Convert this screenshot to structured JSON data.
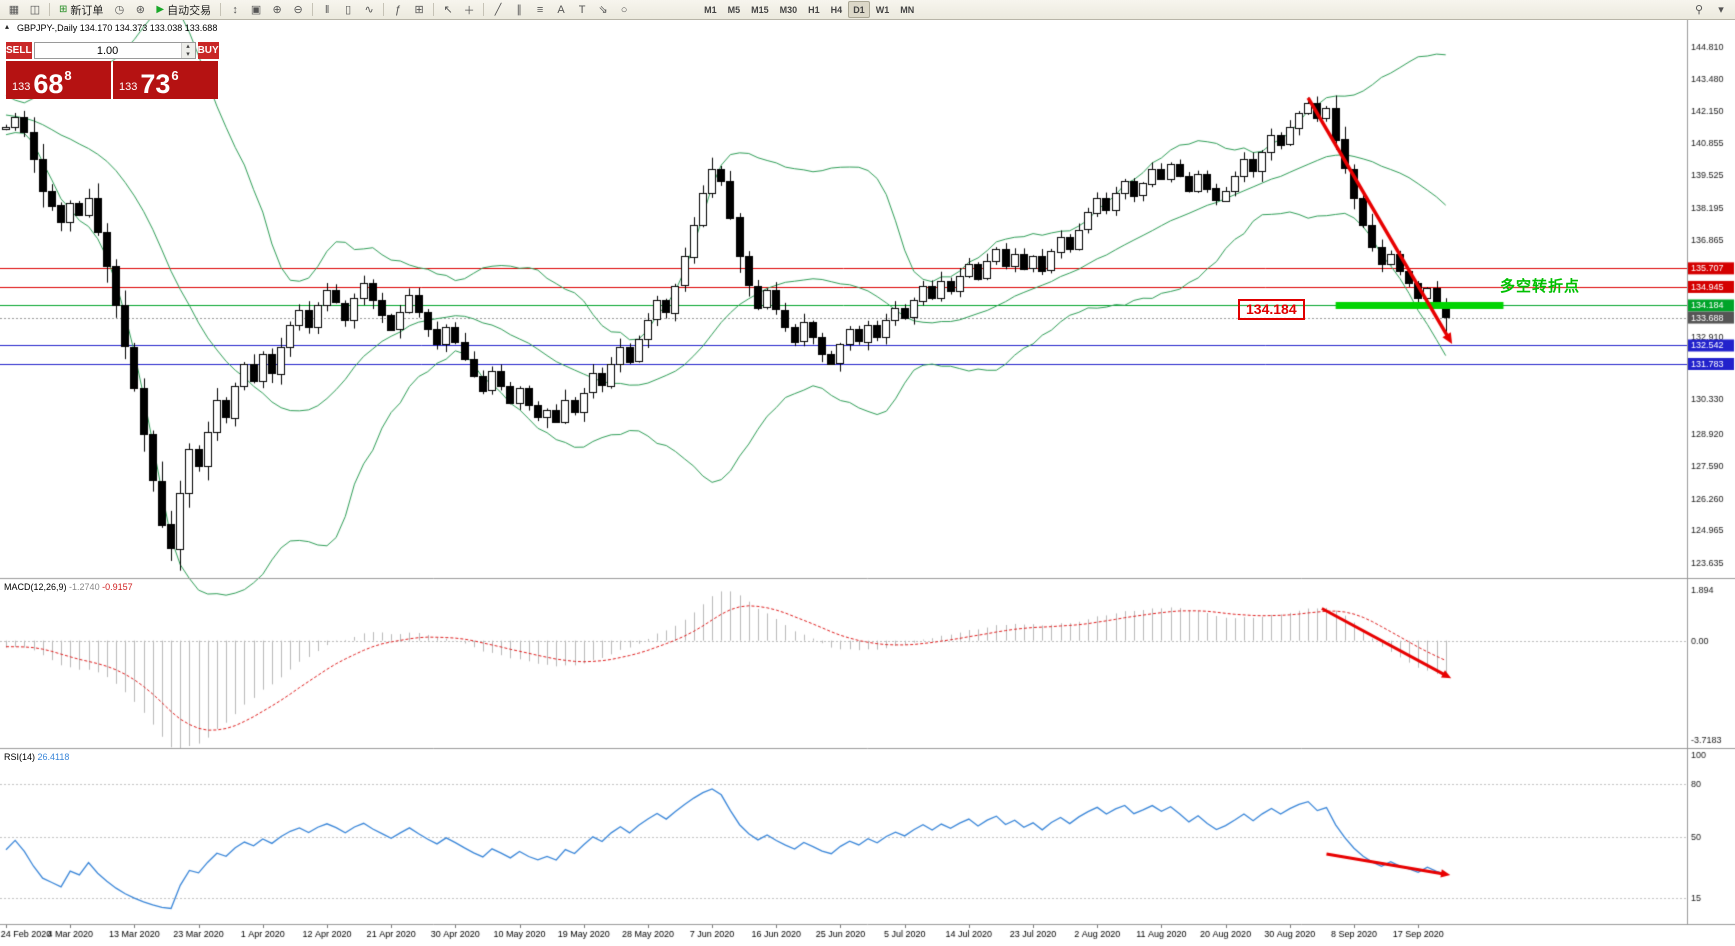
{
  "icons": {
    "panel_toggle": "▴",
    "spin_up": "▴",
    "spin_down": "▾"
  },
  "colors": {
    "accent_red": "#d40000",
    "accent_green": "#00a42a",
    "accent_blue": "#2222cc",
    "bollinger": "#2f9e57",
    "rsi_line": "#3b87d9",
    "macd_signal": "#e02020",
    "macd_histogram": "#b9b9b9",
    "candle_outline": "#000000",
    "support_bar": "#00d400",
    "arrow": "#e80000",
    "bid_label_bg": "#555555"
  },
  "toolbar": {
    "items": [
      {
        "type": "icon",
        "name": "new-chart-icon",
        "glyph": "▦"
      },
      {
        "type": "icon",
        "name": "chart-profiles-icon",
        "glyph": "◫"
      },
      {
        "type": "sep"
      },
      {
        "type": "button",
        "name": "new-order-button",
        "glyph": "⊞",
        "glyph_color": "#1f8a1f",
        "label": "新订单"
      },
      {
        "type": "icon",
        "name": "history-center-icon",
        "glyph": "◷"
      },
      {
        "type": "icon",
        "name": "alerts-icon",
        "glyph": "⊛"
      },
      {
        "type": "button",
        "name": "autotrading-button",
        "glyph": "▶",
        "glyph_color": "#19a829",
        "label": "自动交易"
      },
      {
        "type": "sep"
      },
      {
        "type": "icon",
        "name": "scale-icon",
        "glyph": "↕"
      },
      {
        "type": "icon",
        "name": "tile-windows-icon",
        "glyph": "▣"
      },
      {
        "type": "icon",
        "name": "zoom-in-icon",
        "glyph": "⊕"
      },
      {
        "type": "icon",
        "name": "zoom-out-icon",
        "glyph": "⊖"
      },
      {
        "type": "sep"
      },
      {
        "type": "icon",
        "name": "bar-chart-icon",
        "glyph": "‖"
      },
      {
        "type": "icon",
        "name": "candlestick-chart-icon",
        "glyph": "▯"
      },
      {
        "type": "icon",
        "name": "line-chart-icon",
        "glyph": "∿"
      },
      {
        "type": "sep"
      },
      {
        "type": "icon",
        "name": "indicators-icon",
        "glyph": "ƒ"
      },
      {
        "type": "icon",
        "name": "objects-list-icon",
        "glyph": "⊞"
      },
      {
        "type": "sep"
      },
      {
        "type": "icon",
        "name": "cursor-icon",
        "glyph": "↖"
      },
      {
        "type": "icon",
        "name": "crosshair-icon",
        "glyph": "＋"
      },
      {
        "type": "sep"
      },
      {
        "type": "icon",
        "name": "trendline-icon",
        "glyph": "╱"
      },
      {
        "type": "icon",
        "name": "channel-icon",
        "glyph": "∥"
      },
      {
        "type": "icon",
        "name": "fibonacci-icon",
        "glyph": "≡"
      },
      {
        "type": "icon",
        "name": "text-icon",
        "glyph": "A"
      },
      {
        "type": "icon",
        "name": "text-label-icon",
        "glyph": "T"
      },
      {
        "type": "icon",
        "name": "arrow-object-icon",
        "glyph": "⇘"
      },
      {
        "type": "icon",
        "name": "shapes-icon",
        "glyph": "○"
      }
    ],
    "timeframes": [
      "M1",
      "M5",
      "M15",
      "M30",
      "H1",
      "H4",
      "D1",
      "W1",
      "MN"
    ],
    "active_timeframe": "D1",
    "right_items": [
      {
        "type": "icon",
        "name": "search-icon",
        "glyph": "⚲"
      },
      {
        "type": "icon",
        "name": "toolbar-options-icon",
        "glyph": "▾"
      }
    ]
  },
  "chart": {
    "header_text": "GBPJPY-,Daily  134.170 134.373 133.038 133.688"
  },
  "trade_panel": {
    "sell_label": "SELL",
    "buy_label": "BUY",
    "volume": "1.00",
    "sell_price": {
      "big": "133",
      "mid": "68",
      "sup": "8"
    },
    "buy_price": {
      "big": "133",
      "mid": "73",
      "sup": "6"
    }
  },
  "indicators": {
    "macd": {
      "name": "MACD(12,26,9)",
      "main_value": "-1.2740",
      "signal_value": "-0.9157"
    },
    "rsi": {
      "name": "RSI(14)",
      "value": "26.4118"
    }
  },
  "annotations": {
    "price_tag_text": "134.184",
    "turning_point_text": "多空转折点"
  },
  "chart_data": {
    "type": "candlestick",
    "symbol": "GBPJPY",
    "timeframe": "Daily",
    "price_axis_range": [
      123.0,
      145.9
    ],
    "closes": [
      141.5,
      141.9,
      141.3,
      140.2,
      138.9,
      138.3,
      137.6,
      138.4,
      137.9,
      138.6,
      137.2,
      135.8,
      134.2,
      132.5,
      130.8,
      128.9,
      127.0,
      125.2,
      124.2,
      126.5,
      128.3,
      127.6,
      129.0,
      130.3,
      129.6,
      130.9,
      131.8,
      131.1,
      132.2,
      131.4,
      132.5,
      133.4,
      134.0,
      133.3,
      134.2,
      134.8,
      134.3,
      133.6,
      134.5,
      135.1,
      134.4,
      133.8,
      133.2,
      133.9,
      134.6,
      133.9,
      133.2,
      132.6,
      133.3,
      132.7,
      132.0,
      131.3,
      130.7,
      131.5,
      130.9,
      130.2,
      130.8,
      130.1,
      129.6,
      129.9,
      129.4,
      130.3,
      129.8,
      130.6,
      131.4,
      130.9,
      131.8,
      132.5,
      131.9,
      132.8,
      133.6,
      134.4,
      133.9,
      135.0,
      136.2,
      137.5,
      138.8,
      139.8,
      139.3,
      137.8,
      136.2,
      135.0,
      134.1,
      134.8,
      134.0,
      133.3,
      132.7,
      133.5,
      132.9,
      132.2,
      131.8,
      132.6,
      133.2,
      132.7,
      133.4,
      132.9,
      133.6,
      134.1,
      133.7,
      134.4,
      135.0,
      134.5,
      135.2,
      134.8,
      135.4,
      135.9,
      135.3,
      136.0,
      136.5,
      135.8,
      136.3,
      135.7,
      136.2,
      135.6,
      136.4,
      137.0,
      136.5,
      137.3,
      138.0,
      138.6,
      138.1,
      138.8,
      139.3,
      138.7,
      139.2,
      139.8,
      139.4,
      140.0,
      139.5,
      138.9,
      139.6,
      139.0,
      138.5,
      138.9,
      139.5,
      140.2,
      139.7,
      140.5,
      141.2,
      140.8,
      141.5,
      142.1,
      142.5,
      141.9,
      142.3,
      141.0,
      139.8,
      138.6,
      137.5,
      136.6,
      135.9,
      136.3,
      135.6,
      135.1,
      134.5,
      134.9,
      134.2,
      133.688
    ],
    "warmup_closes": [
      142.6,
      142.9,
      143.2,
      143.0,
      143.4,
      143.1,
      142.8,
      143.0,
      142.7,
      142.4,
      142.1,
      142.4,
      142.0,
      141.7,
      142.0,
      142.3,
      141.9,
      141.6,
      141.9,
      142.2,
      141.8,
      141.5,
      141.8,
      142.1,
      141.7,
      141.4
    ],
    "candle_overrides": {
      "highs": {
        "77": 140.25,
        "142": 142.72
      },
      "lows": {
        "18": 123.7,
        "59": 129.15,
        "157": 132.91
      }
    },
    "indicators": {
      "bollinger": {
        "period": 20,
        "deviation": 2
      },
      "macd": {
        "fast": 12,
        "slow": 26,
        "signal": 9,
        "pane_range": [
          -4.0,
          2.3
        ],
        "axis_labels": [
          {
            "text": "1.894",
            "value": 1.894
          },
          {
            "text": "0.00",
            "value": 0
          },
          {
            "text": "-3.7183",
            "value": -3.7183
          }
        ]
      },
      "rsi": {
        "period": 14,
        "pane_range": [
          0,
          100
        ],
        "levels": [
          80,
          50,
          15
        ],
        "axis_labels": [
          {
            "text": "100",
            "value": 100
          },
          {
            "text": "80",
            "value": 80
          },
          {
            "text": "50",
            "value": 50
          },
          {
            "text": "15",
            "value": 15
          }
        ]
      }
    },
    "horizontal_lines": [
      {
        "price": 135.707,
        "color": "#dd0000",
        "label": "135.707",
        "label_bg": "#d40000"
      },
      {
        "price": 134.945,
        "color": "#dd0000",
        "label": "134.945",
        "label_bg": "#d40000"
      },
      {
        "price": 134.184,
        "color": "#00a42a",
        "label": "134.184",
        "label_bg": "#00a42a"
      },
      {
        "price": 132.542,
        "color": "#2222cc",
        "label": "132.542",
        "label_bg": "#2222cc"
      },
      {
        "price": 131.783,
        "color": "#2222cc",
        "label": "131.783",
        "label_bg": "#2222cc"
      }
    ],
    "bid_line": {
      "price": 133.688,
      "label": "133.688"
    },
    "price_axis_labels": [
      {
        "text": "144.810",
        "value": 144.81
      },
      {
        "text": "143.480",
        "value": 143.48
      },
      {
        "text": "142.150",
        "value": 142.15
      },
      {
        "text": "140.855",
        "value": 140.855
      },
      {
        "text": "139.525",
        "value": 139.525
      },
      {
        "text": "138.195",
        "value": 138.195
      },
      {
        "text": "136.865",
        "value": 136.865
      },
      {
        "text": "132.910",
        "value": 132.91
      },
      {
        "text": "130.330",
        "value": 130.33
      },
      {
        "text": "128.920",
        "value": 128.92
      },
      {
        "text": "127.590",
        "value": 127.59
      },
      {
        "text": "126.260",
        "value": 126.26
      },
      {
        "text": "124.965",
        "value": 124.965
      },
      {
        "text": "123.635",
        "value": 123.635
      }
    ],
    "time_axis": {
      "bars_per_tick": 7,
      "labels": [
        "24 Feb 2020",
        "4 Mar 2020",
        "13 Mar 2020",
        "23 Mar 2020",
        "1 Apr 2020",
        "12 Apr 2020",
        "21 Apr 2020",
        "30 Apr 2020",
        "10 May 2020",
        "19 May 2020",
        "28 May 2020",
        "7 Jun 2020",
        "16 Jun 2020",
        "25 Jun 2020",
        "5 Jul 2020",
        "14 Jul 2020",
        "23 Jul 2020",
        "2 Aug 2020",
        "11 Aug 2020",
        "20 Aug 2020",
        "30 Aug 2020",
        "8 Sep 2020",
        "17 Sep 2020"
      ]
    },
    "annotations": {
      "trend_arrow_price": {
        "from_bar": 142,
        "from_price": 142.7,
        "to_bar": 157.7,
        "to_price": 132.6
      },
      "support_bar": {
        "price": 134.184,
        "from_bar": 145,
        "to_bar": 163.3,
        "thickness": 7
      },
      "macd_arrow": {
        "from_bar": 143.5,
        "from_value": 1.2,
        "to_bar": 157.6,
        "to_value": -1.4
      },
      "rsi_arrow": {
        "from_bar": 144,
        "from_value": 40,
        "to_bar": 157.5,
        "to_value": 28
      }
    }
  }
}
